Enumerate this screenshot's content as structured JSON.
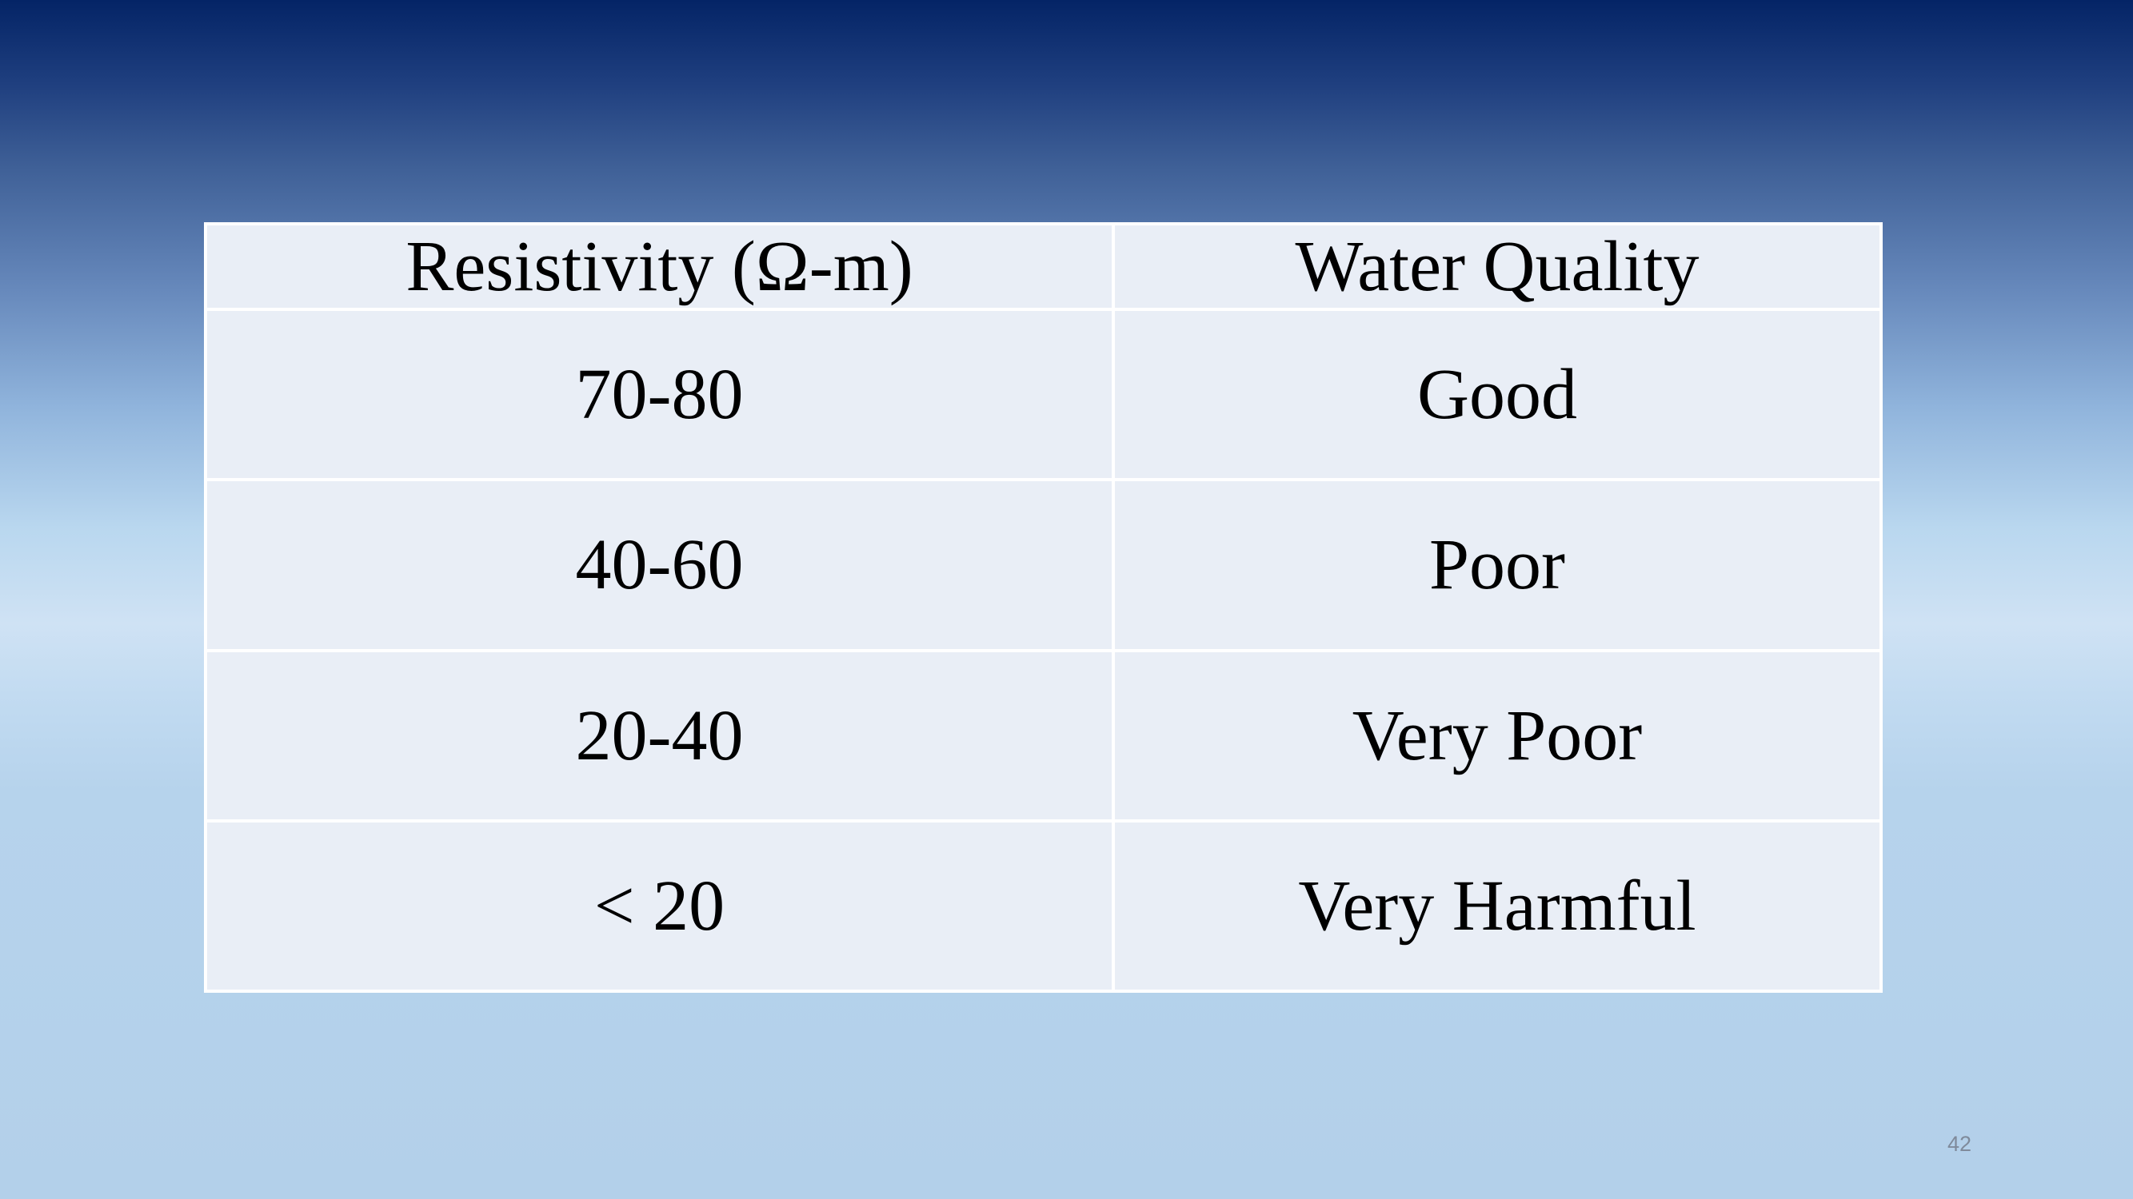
{
  "table": {
    "headers": [
      "Resistivity (Ω-m)",
      "Water Quality"
    ],
    "rows": [
      [
        "70-80",
        "Good"
      ],
      [
        "40-60",
        "Poor"
      ],
      [
        "20-40",
        "Very Poor"
      ],
      [
        "< 20",
        "Very Harmful"
      ]
    ]
  },
  "slide": {
    "page_number": "42"
  },
  "colors": {
    "table_fill": "#e9eef6",
    "table_border": "#ffffff",
    "text": "#000000",
    "background_top": "#042466",
    "background_bottom": "#b3d0ea"
  }
}
